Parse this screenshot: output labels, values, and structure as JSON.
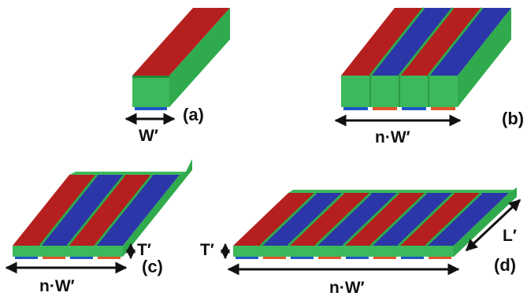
{
  "panels": [
    {
      "id": "a",
      "label": "(a)",
      "dimension_label": "W′"
    },
    {
      "id": "b",
      "label": "(b)",
      "dimension_label": "n·W′"
    },
    {
      "id": "c",
      "label": "(c)",
      "width_label": "n·W′",
      "thickness_label": "T′"
    },
    {
      "id": "d",
      "label": "(d)",
      "width_label": "n·W′",
      "thickness_label": "T′",
      "length_label": "L′"
    }
  ],
  "colors": {
    "green_side": "#2faa4c",
    "green_front": "#3cb95a",
    "green_dark": "#1f8a39",
    "red_stripe": "#b5201e",
    "red_bottom": "#e0552a",
    "blue_stripe": "#2b36a8",
    "blue_bottom": "#1f55c8",
    "arrow": "#111111"
  }
}
